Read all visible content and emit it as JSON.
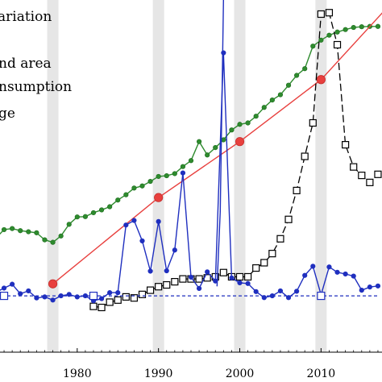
{
  "chart_data": {
    "type": "line",
    "title": "",
    "xlabel": "",
    "ylabel": "",
    "xlim": [
      1970.5,
      2017.5
    ],
    "ylim": [
      0,
      100
    ],
    "x_ticks": [
      1980,
      1990,
      2000,
      2010
    ],
    "x_tick_labels": [
      "1980",
      "1990",
      "2000",
      "2010"
    ],
    "grid": false,
    "shaded_years": [
      1977,
      1990,
      2000,
      2010
    ],
    "legend": {
      "placement": "top-left",
      "entries": [
        "ariation",
        "nd area",
        "nsumption",
        "ge"
      ]
    },
    "series": [
      {
        "color": "#2e8b2e",
        "marker": "filled-circle",
        "x": [
          1970,
          1971,
          1972,
          1973,
          1974,
          1975,
          1976,
          1977,
          1978,
          1979,
          1980,
          1981,
          1982,
          1983,
          1984,
          1985,
          1986,
          1987,
          1988,
          1989,
          1990,
          1991,
          1992,
          1993,
          1994,
          1995,
          1996,
          1997,
          1998,
          1999,
          2000,
          2001,
          2002,
          2003,
          2004,
          2005,
          2006,
          2007,
          2008,
          2009,
          2010,
          2011,
          2012,
          2013,
          2014,
          2015,
          2016,
          2017
        ],
        "y": [
          32.4,
          34.8,
          35.1,
          34.5,
          34.2,
          33.9,
          31.9,
          31.2,
          33.0,
          36.3,
          38.4,
          38.5,
          39.6,
          40.4,
          41.3,
          43.2,
          44.7,
          46.6,
          47.2,
          48.5,
          49.9,
          50.1,
          50.7,
          52.7,
          54.4,
          59.8,
          56.0,
          58.1,
          60.3,
          63.1,
          64.7,
          65.1,
          67.0,
          69.5,
          71.6,
          73.1,
          75.8,
          78.6,
          80.5,
          86.9,
          88.6,
          90.0,
          90.9,
          91.6,
          92.2,
          92.4,
          92.5,
          92.5
        ]
      },
      {
        "color": "#e8403e",
        "marker": "large-filled-circle",
        "x": [
          1977,
          1990,
          2000,
          2010,
          2018
        ],
        "y": [
          19.4,
          43.9,
          59.8,
          77.4,
          97.5
        ],
        "marker_points": [
          [
            1977,
            19.4
          ],
          [
            1990,
            43.9
          ],
          [
            2000,
            59.8
          ],
          [
            2010,
            77.4
          ]
        ]
      },
      {
        "color": "#000000",
        "marker": "open-square",
        "dashed": true,
        "x": [
          1982,
          1983,
          1984,
          1985,
          1986,
          1987,
          1988,
          1989,
          1990,
          1991,
          1992,
          1993,
          1994,
          1995,
          1996,
          1997,
          1998,
          1999,
          2000,
          2001,
          2002,
          2003,
          2004,
          2005,
          2006,
          2007,
          2008,
          2009,
          2010,
          2011,
          2012,
          2013,
          2014,
          2015,
          2016,
          2017
        ],
        "y": [
          13.0,
          12.7,
          14.2,
          14.8,
          15.7,
          15.4,
          16.4,
          17.6,
          18.6,
          19.1,
          20.0,
          20.8,
          20.8,
          20.8,
          21.1,
          21.4,
          22.6,
          21.4,
          21.4,
          21.4,
          23.9,
          25.4,
          28.0,
          32.2,
          37.7,
          45.9,
          55.6,
          65.1,
          96.0,
          96.4,
          87.3,
          58.9,
          52.6,
          50.2,
          48.2,
          50.5
        ]
      },
      {
        "color": "#1f2fbf",
        "marker": "filled-circle",
        "x": [
          1970,
          1971,
          1972,
          1973,
          1974,
          1975,
          1976,
          1977,
          1978,
          1979,
          1980,
          1981,
          1982,
          1983,
          1984,
          1985,
          1986,
          1987,
          1988,
          1989,
          1990,
          1991,
          1992,
          1993,
          1994,
          1995,
          1996,
          1997,
          1998,
          1999,
          2000,
          2001,
          2002,
          2003,
          2004,
          2005,
          2006,
          2007,
          2008,
          2009,
          2010,
          2011,
          2012,
          2013,
          2014,
          2015,
          2016,
          2017
        ],
        "y": [
          17.0,
          18.2,
          19.3,
          16.6,
          17.4,
          15.4,
          15.7,
          14.8,
          16.0,
          16.4,
          15.7,
          16.0,
          14.6,
          15.2,
          16.9,
          16.9,
          36.1,
          37.4,
          31.6,
          23.0,
          37.1,
          23.1,
          29.0,
          50.9,
          21.3,
          18.1,
          22.8,
          20.2,
          85.0,
          21.1,
          19.7,
          19.5,
          17.2,
          15.5,
          16.0,
          17.4,
          15.5,
          17.3,
          21.8,
          24.4,
          16.3,
          24.2,
          22.7,
          22.2,
          21.6,
          17.6,
          18.5,
          18.8
        ],
        "peak_line": [
          [
            1997.2,
            18.7
          ],
          [
            1997.6,
            40.0
          ],
          [
            1998,
            100
          ]
        ]
      },
      {
        "color": "#1f2fbf",
        "marker": "open-square",
        "dashed": true,
        "x": [
          1970,
          1982,
          2017
        ],
        "y": [
          16.0,
          16.0,
          16.0
        ],
        "marker_points": [
          [
            1971,
            16.0
          ],
          [
            1982,
            16.0
          ],
          [
            2010,
            16.0
          ]
        ]
      }
    ]
  }
}
